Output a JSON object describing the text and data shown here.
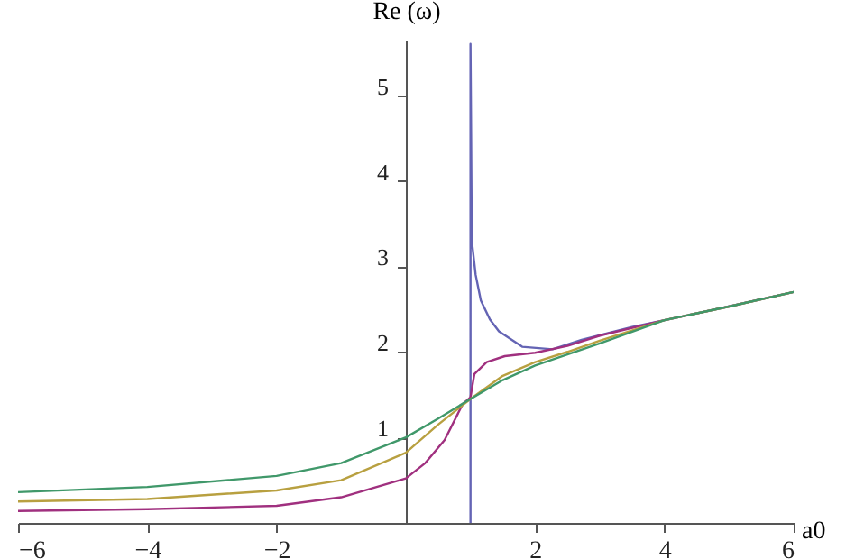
{
  "chart_data": {
    "type": "line",
    "xlabel": "a0",
    "ylabel": "Re (ω)",
    "xlim": [
      -6,
      6
    ],
    "ylim": [
      0,
      5.65
    ],
    "xticks": [
      -6,
      -4,
      -2,
      2,
      4,
      6
    ],
    "yticks": [
      1,
      2,
      3,
      4,
      5
    ],
    "grid": false,
    "legend": false,
    "series": [
      {
        "color": "#6464b4",
        "x": [
          1,
          1,
          1.01,
          1.02,
          1.08,
          1.16,
          1.3,
          1.44,
          1.8,
          2.27,
          2.72,
          3.5,
          4.5,
          6
        ],
        "values": [
          0,
          5.6,
          4.5,
          3.3,
          2.9,
          2.6,
          2.38,
          2.24,
          2.06,
          2.03,
          2.14,
          2.29,
          2.45,
          2.7
        ]
      },
      {
        "color": "#a0307f",
        "x": [
          -6,
          -4,
          -2,
          -1,
          0,
          0.3,
          0.6,
          0.88,
          1,
          1.06,
          1.25,
          1.53,
          2,
          2.5,
          3,
          4,
          5,
          6
        ],
        "values": [
          0.14,
          0.16,
          0.2,
          0.3,
          0.52,
          0.7,
          0.97,
          1.39,
          1.47,
          1.74,
          1.88,
          1.95,
          1.99,
          2.07,
          2.19,
          2.37,
          2.53,
          2.7
        ]
      },
      {
        "color": "#b8a040",
        "x": [
          -6,
          -4,
          -2,
          -1,
          0,
          0.5,
          1,
          1.5,
          2,
          2.5,
          3,
          4,
          5,
          6
        ],
        "values": [
          0.25,
          0.28,
          0.38,
          0.5,
          0.82,
          1.15,
          1.45,
          1.72,
          1.88,
          2.0,
          2.13,
          2.37,
          2.53,
          2.7
        ]
      },
      {
        "color": "#40986a",
        "x": [
          -6,
          -4,
          -2,
          -1,
          0,
          0.5,
          1,
          1.5,
          2,
          2.5,
          3,
          4,
          5,
          6
        ],
        "values": [
          0.36,
          0.42,
          0.55,
          0.7,
          1.0,
          1.22,
          1.45,
          1.67,
          1.84,
          1.97,
          2.1,
          2.37,
          2.53,
          2.7
        ]
      }
    ]
  }
}
